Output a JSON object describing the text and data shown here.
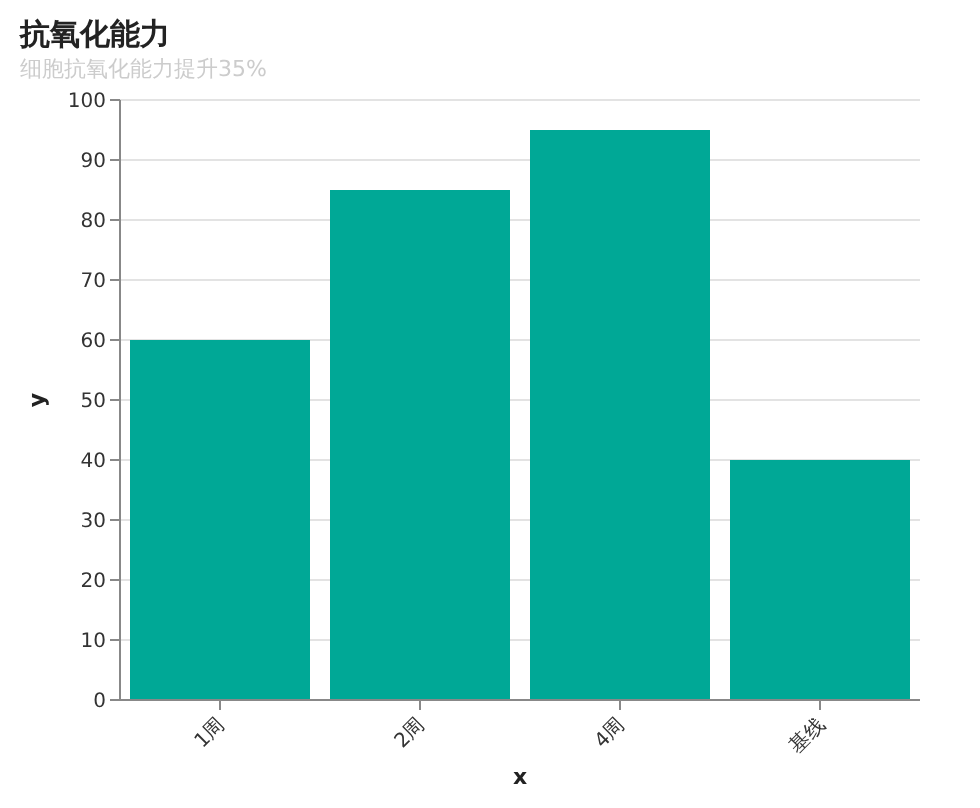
{
  "chart_data": {
    "type": "bar",
    "title": "抗氧化能力",
    "subtitle": "细胞抗氧化能力提升35%",
    "xlabel": "x",
    "ylabel": "y",
    "categories": [
      "1周",
      "2周",
      "4周",
      "基线"
    ],
    "values": [
      60,
      85,
      95,
      40
    ],
    "color": "#00a896",
    "ylim": [
      0,
      100
    ],
    "yticks": [
      0,
      10,
      20,
      30,
      40,
      50,
      60,
      70,
      80,
      90,
      100
    ],
    "grid": "y"
  }
}
